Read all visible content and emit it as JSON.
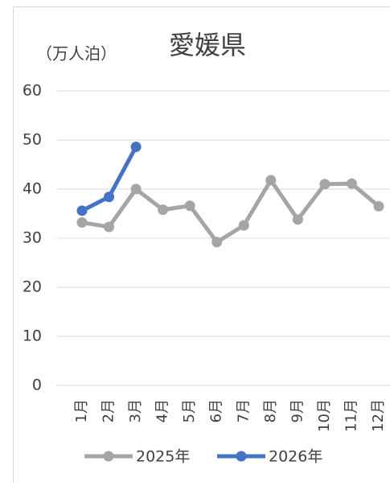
{
  "chart_data": {
    "type": "line",
    "title": "愛媛県",
    "y_label": "（万人泊）",
    "categories": [
      "1月",
      "2月",
      "3月",
      "4月",
      "5月",
      "6月",
      "7月",
      "8月",
      "9月",
      "10月",
      "11月",
      "12月"
    ],
    "series": [
      {
        "name": "2025年",
        "color": "#a5a5a5",
        "values": [
          33.2,
          32.3,
          40.0,
          35.8,
          36.6,
          29.2,
          32.6,
          41.8,
          33.8,
          41.0,
          41.1,
          36.5
        ]
      },
      {
        "name": "2026年",
        "color": "#4472c4",
        "values": [
          35.6,
          38.4,
          48.6,
          null,
          null,
          null,
          null,
          null,
          null,
          null,
          null,
          null
        ]
      }
    ],
    "ylim": [
      0,
      60
    ],
    "yticks": [
      0,
      10,
      20,
      30,
      40,
      50,
      60
    ],
    "grid": true
  }
}
